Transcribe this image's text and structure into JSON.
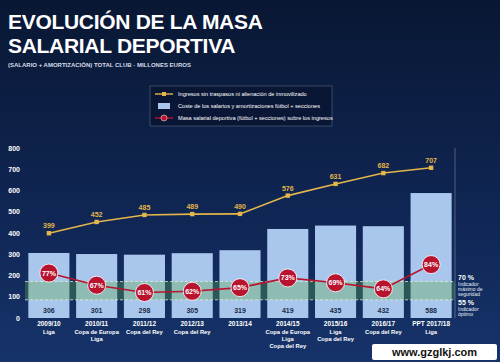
{
  "chart_data": {
    "type": "bar",
    "title": "EVOLUCIÓN DE LA MASA SALARIAL DEPORTIVA",
    "subtitle": "(SALARIO + AMORTIZACIÓN) TOTAL CLUB · MILLONES EUROS",
    "categories": [
      "2009/10",
      "2010/11",
      "2011/12",
      "2012/13",
      "2013/14",
      "2014/15",
      "2015/16",
      "2016/17",
      "PPT 2017/18"
    ],
    "trophies": [
      [
        "Liga"
      ],
      [
        "Copa de Europa",
        "Liga"
      ],
      [
        "Copa del Rey"
      ],
      [
        "Copa del Rey"
      ],
      [],
      [
        "Copa de Europa",
        "Liga",
        "Copa del Rey"
      ],
      [
        "Liga",
        "Copa del Rey"
      ],
      [
        "Copa del Rey"
      ],
      [
        "Liga"
      ]
    ],
    "series": [
      {
        "name": "Ingresos sin traspasos ni alienación de inmovilizado",
        "type": "line",
        "color": "#e3b54a",
        "marker": "square",
        "values": [
          399,
          452,
          485,
          489,
          490,
          576,
          631,
          682,
          707
        ]
      },
      {
        "name": "Coste de los salarios y amortizaciones fútbol + secciones",
        "type": "bar",
        "color": "#a9c7ec",
        "values": [
          306,
          301,
          298,
          305,
          319,
          419,
          435,
          432,
          588
        ]
      },
      {
        "name": "Masa salarial deportiva (fútbol + secciones) sobre los ingresos",
        "type": "line",
        "axis": "y2",
        "color": "#b8132f",
        "marker": "circle",
        "values": [
          77,
          67,
          61,
          62,
          65,
          73,
          69,
          64,
          84
        ],
        "value_labels": [
          "77%",
          "67%",
          "61%",
          "62%",
          "65%",
          "73%",
          "69%",
          "64%",
          "84%"
        ]
      }
    ],
    "ylim": [
      0,
      800
    ],
    "yticks": [
      0,
      100,
      200,
      300,
      400,
      500,
      600,
      700,
      800
    ],
    "y2lim": [
      40,
      180
    ],
    "y2ticks": [
      {
        "value": 70,
        "label": "70 %"
      },
      {
        "value": 55,
        "label": "55 %"
      }
    ],
    "y2tick_notes": [
      "Indicador máximo de seguridad",
      "Indicador óptimo"
    ],
    "watermark": "www.gzglkj.com",
    "data_labels": true,
    "grid": false,
    "legend": "top"
  }
}
